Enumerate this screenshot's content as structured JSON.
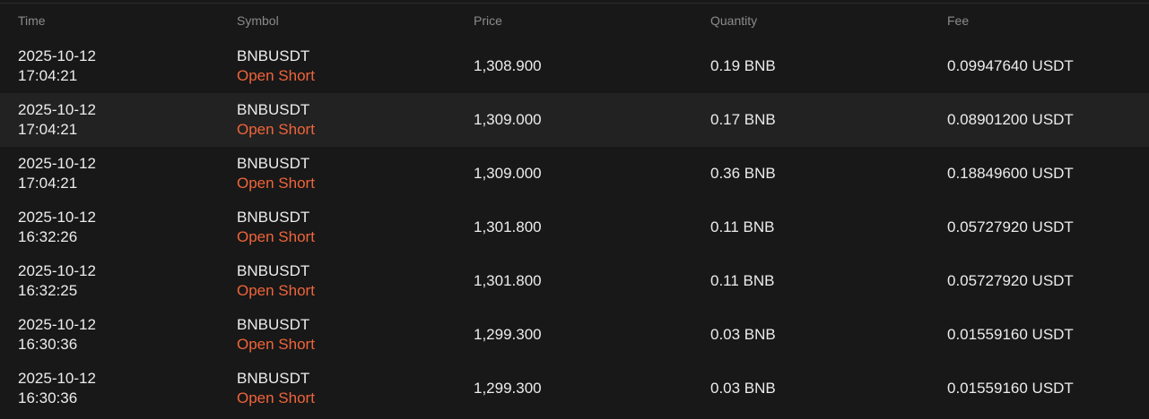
{
  "columns": {
    "time": "Time",
    "symbol": "Symbol",
    "price": "Price",
    "quantity": "Quantity",
    "fee": "Fee"
  },
  "colors": {
    "background": "#181818",
    "highlight_row": "#222222",
    "header_text": "#8b8b8b",
    "text": "#ececec",
    "side_text": "#f0643a"
  },
  "rows": [
    {
      "date": "2025-10-12",
      "time": "17:04:21",
      "symbol": "BNBUSDT",
      "side": "Open Short",
      "price": "1,308.900",
      "quantity": "0.19 BNB",
      "fee": "0.09947640 USDT"
    },
    {
      "date": "2025-10-12",
      "time": "17:04:21",
      "symbol": "BNBUSDT",
      "side": "Open Short",
      "price": "1,309.000",
      "quantity": "0.17 BNB",
      "fee": "0.08901200 USDT"
    },
    {
      "date": "2025-10-12",
      "time": "17:04:21",
      "symbol": "BNBUSDT",
      "side": "Open Short",
      "price": "1,309.000",
      "quantity": "0.36 BNB",
      "fee": "0.18849600 USDT"
    },
    {
      "date": "2025-10-12",
      "time": "16:32:26",
      "symbol": "BNBUSDT",
      "side": "Open Short",
      "price": "1,301.800",
      "quantity": "0.11 BNB",
      "fee": "0.05727920 USDT"
    },
    {
      "date": "2025-10-12",
      "time": "16:32:25",
      "symbol": "BNBUSDT",
      "side": "Open Short",
      "price": "1,301.800",
      "quantity": "0.11 BNB",
      "fee": "0.05727920 USDT"
    },
    {
      "date": "2025-10-12",
      "time": "16:30:36",
      "symbol": "BNBUSDT",
      "side": "Open Short",
      "price": "1,299.300",
      "quantity": "0.03 BNB",
      "fee": "0.01559160 USDT"
    },
    {
      "date": "2025-10-12",
      "time": "16:30:36",
      "symbol": "BNBUSDT",
      "side": "Open Short",
      "price": "1,299.300",
      "quantity": "0.03 BNB",
      "fee": "0.01559160 USDT"
    }
  ]
}
